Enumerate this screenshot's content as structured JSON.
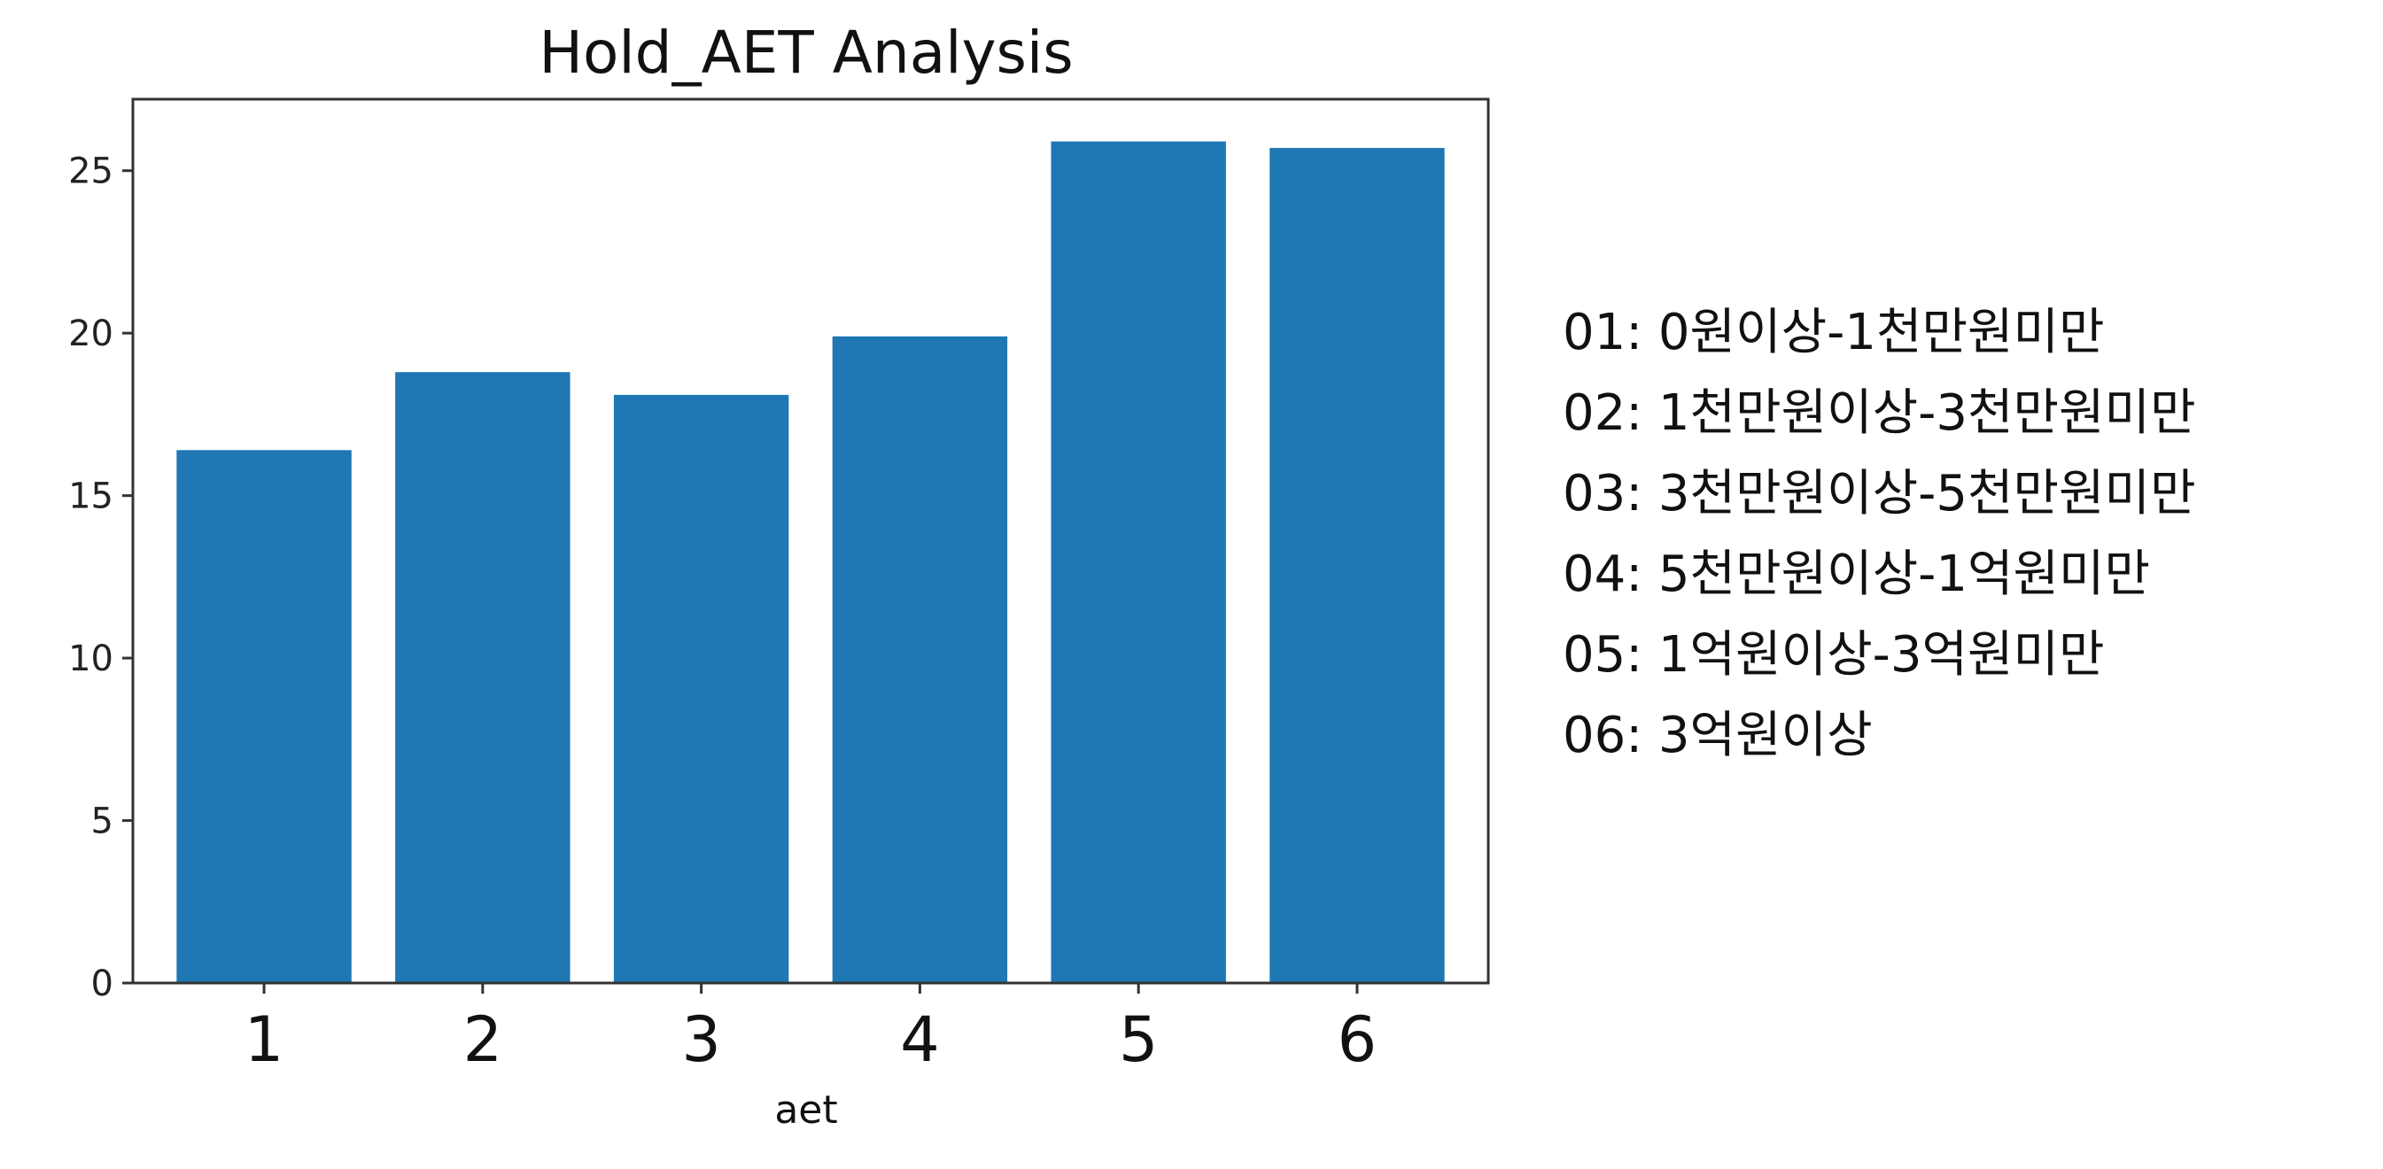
{
  "chart_data": {
    "type": "bar",
    "title": "Hold_AET Analysis",
    "xlabel": "aet",
    "ylabel": "",
    "categories": [
      "1",
      "2",
      "3",
      "4",
      "5",
      "6"
    ],
    "values": [
      16.4,
      18.8,
      18.1,
      19.9,
      25.9,
      25.7
    ],
    "ylim": [
      0,
      27.2
    ],
    "yticks": [
      0,
      5,
      10,
      15,
      20,
      25
    ],
    "bar_color": "#1f77b4",
    "grid": false
  },
  "legend": {
    "items": [
      "01: 0원이상-1천만원미만",
      "02: 1천만원이상-3천만원미만",
      "03: 3천만원이상-5천만원미만",
      "04: 5천만원이상-1억원미만",
      "05: 1억원이상-3억원미만",
      "06: 3억원이상"
    ]
  }
}
